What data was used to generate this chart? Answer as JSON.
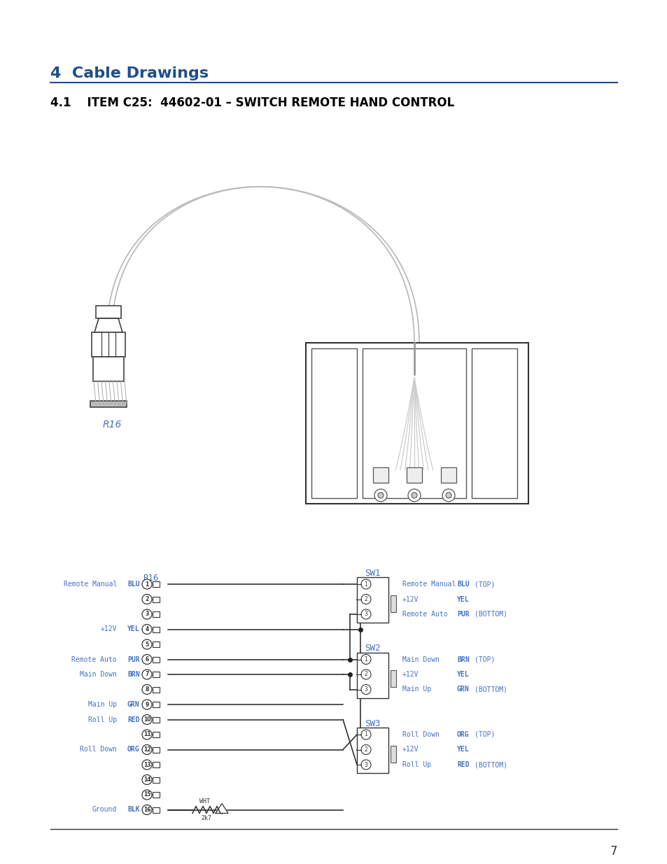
{
  "page_bg": "#ffffff",
  "title_section": "4  Cable Drawings",
  "title_color": "#1f4e8c",
  "subtitle": "4.1    ITEM C25:  44602-01 – SWITCH REMOTE HAND CONTROL",
  "subtitle_color": "#000000",
  "page_number": "7",
  "r16_label": "R16",
  "sw1_label": "SW1",
  "sw2_label": "SW2",
  "sw3_label": "SW3",
  "label_color": "#4472c4",
  "schematic_text_color": "#4472c4",
  "left_label_map": {
    "0": [
      "Remote Manual",
      "BLU"
    ],
    "3": [
      "+12V",
      "YEL"
    ],
    "5": [
      "Remote Auto",
      "PUR"
    ],
    "6": [
      "Main Down",
      "BRN"
    ],
    "8": [
      "Main Up",
      "GRN"
    ],
    "9": [
      "Roll Up",
      "RED"
    ],
    "11": [
      "Roll Down",
      "ORG"
    ],
    "15": [
      "Ground",
      "BLK"
    ]
  },
  "sw1_right_labels": [
    [
      "Remote Manual",
      "BLU",
      "(TOP)"
    ],
    [
      "+12V",
      "YEL",
      ""
    ],
    [
      "Remote Auto",
      "PUR",
      "(BOTTOM)"
    ]
  ],
  "sw2_right_labels": [
    [
      "Main Down",
      "BRN",
      "(TOP)"
    ],
    [
      "+12V",
      "YEL",
      ""
    ],
    [
      "Main Up",
      "GRN",
      "(BOTTOM)"
    ]
  ],
  "sw3_right_labels": [
    [
      "Roll Down",
      "ORG",
      "(TOP)"
    ],
    [
      "+12V",
      "YEL",
      ""
    ],
    [
      "Roll Up",
      "RED",
      "(BOTTOM)"
    ]
  ]
}
